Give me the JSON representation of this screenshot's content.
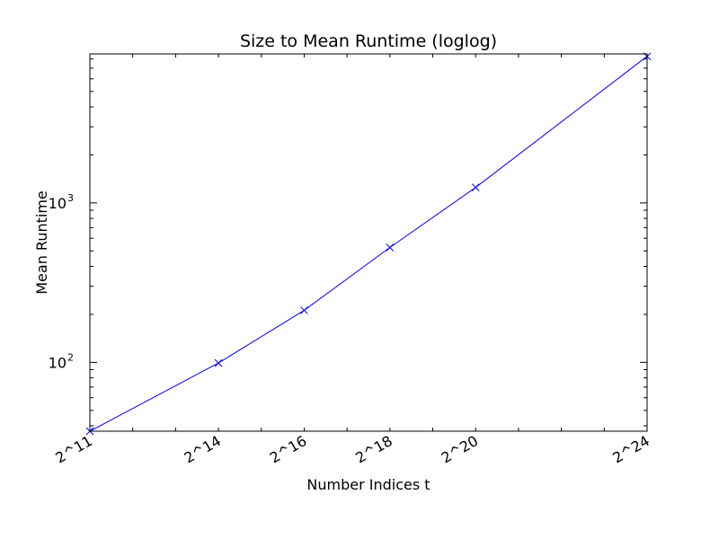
{
  "chart_data": {
    "type": "line",
    "title": "Size to Mean Runtime (loglog)",
    "xlabel": "Number Indices t",
    "ylabel": "Mean Runtime",
    "x_scale": "log2",
    "y_scale": "log10",
    "xlim": [
      2048,
      16777216
    ],
    "ylim": [
      37,
      8600
    ],
    "x_ticks": [
      {
        "value": 2048,
        "label": "2^11"
      },
      {
        "value": 16384,
        "label": "2^14"
      },
      {
        "value": 65536,
        "label": "2^16"
      },
      {
        "value": 262144,
        "label": "2^18"
      },
      {
        "value": 1048576,
        "label": "2^20"
      },
      {
        "value": 16777216,
        "label": "2^24"
      }
    ],
    "y_ticks": [
      {
        "value": 100,
        "base": "10",
        "exp": "2"
      },
      {
        "value": 1000,
        "base": "10",
        "exp": "3"
      }
    ],
    "grid": false,
    "series": [
      {
        "color": "#0000ff",
        "marker": "x",
        "x": [
          2048,
          16384,
          65536,
          262144,
          1048576,
          16777216
        ],
        "y": [
          37,
          99,
          212,
          525,
          1250,
          8300
        ]
      }
    ]
  }
}
